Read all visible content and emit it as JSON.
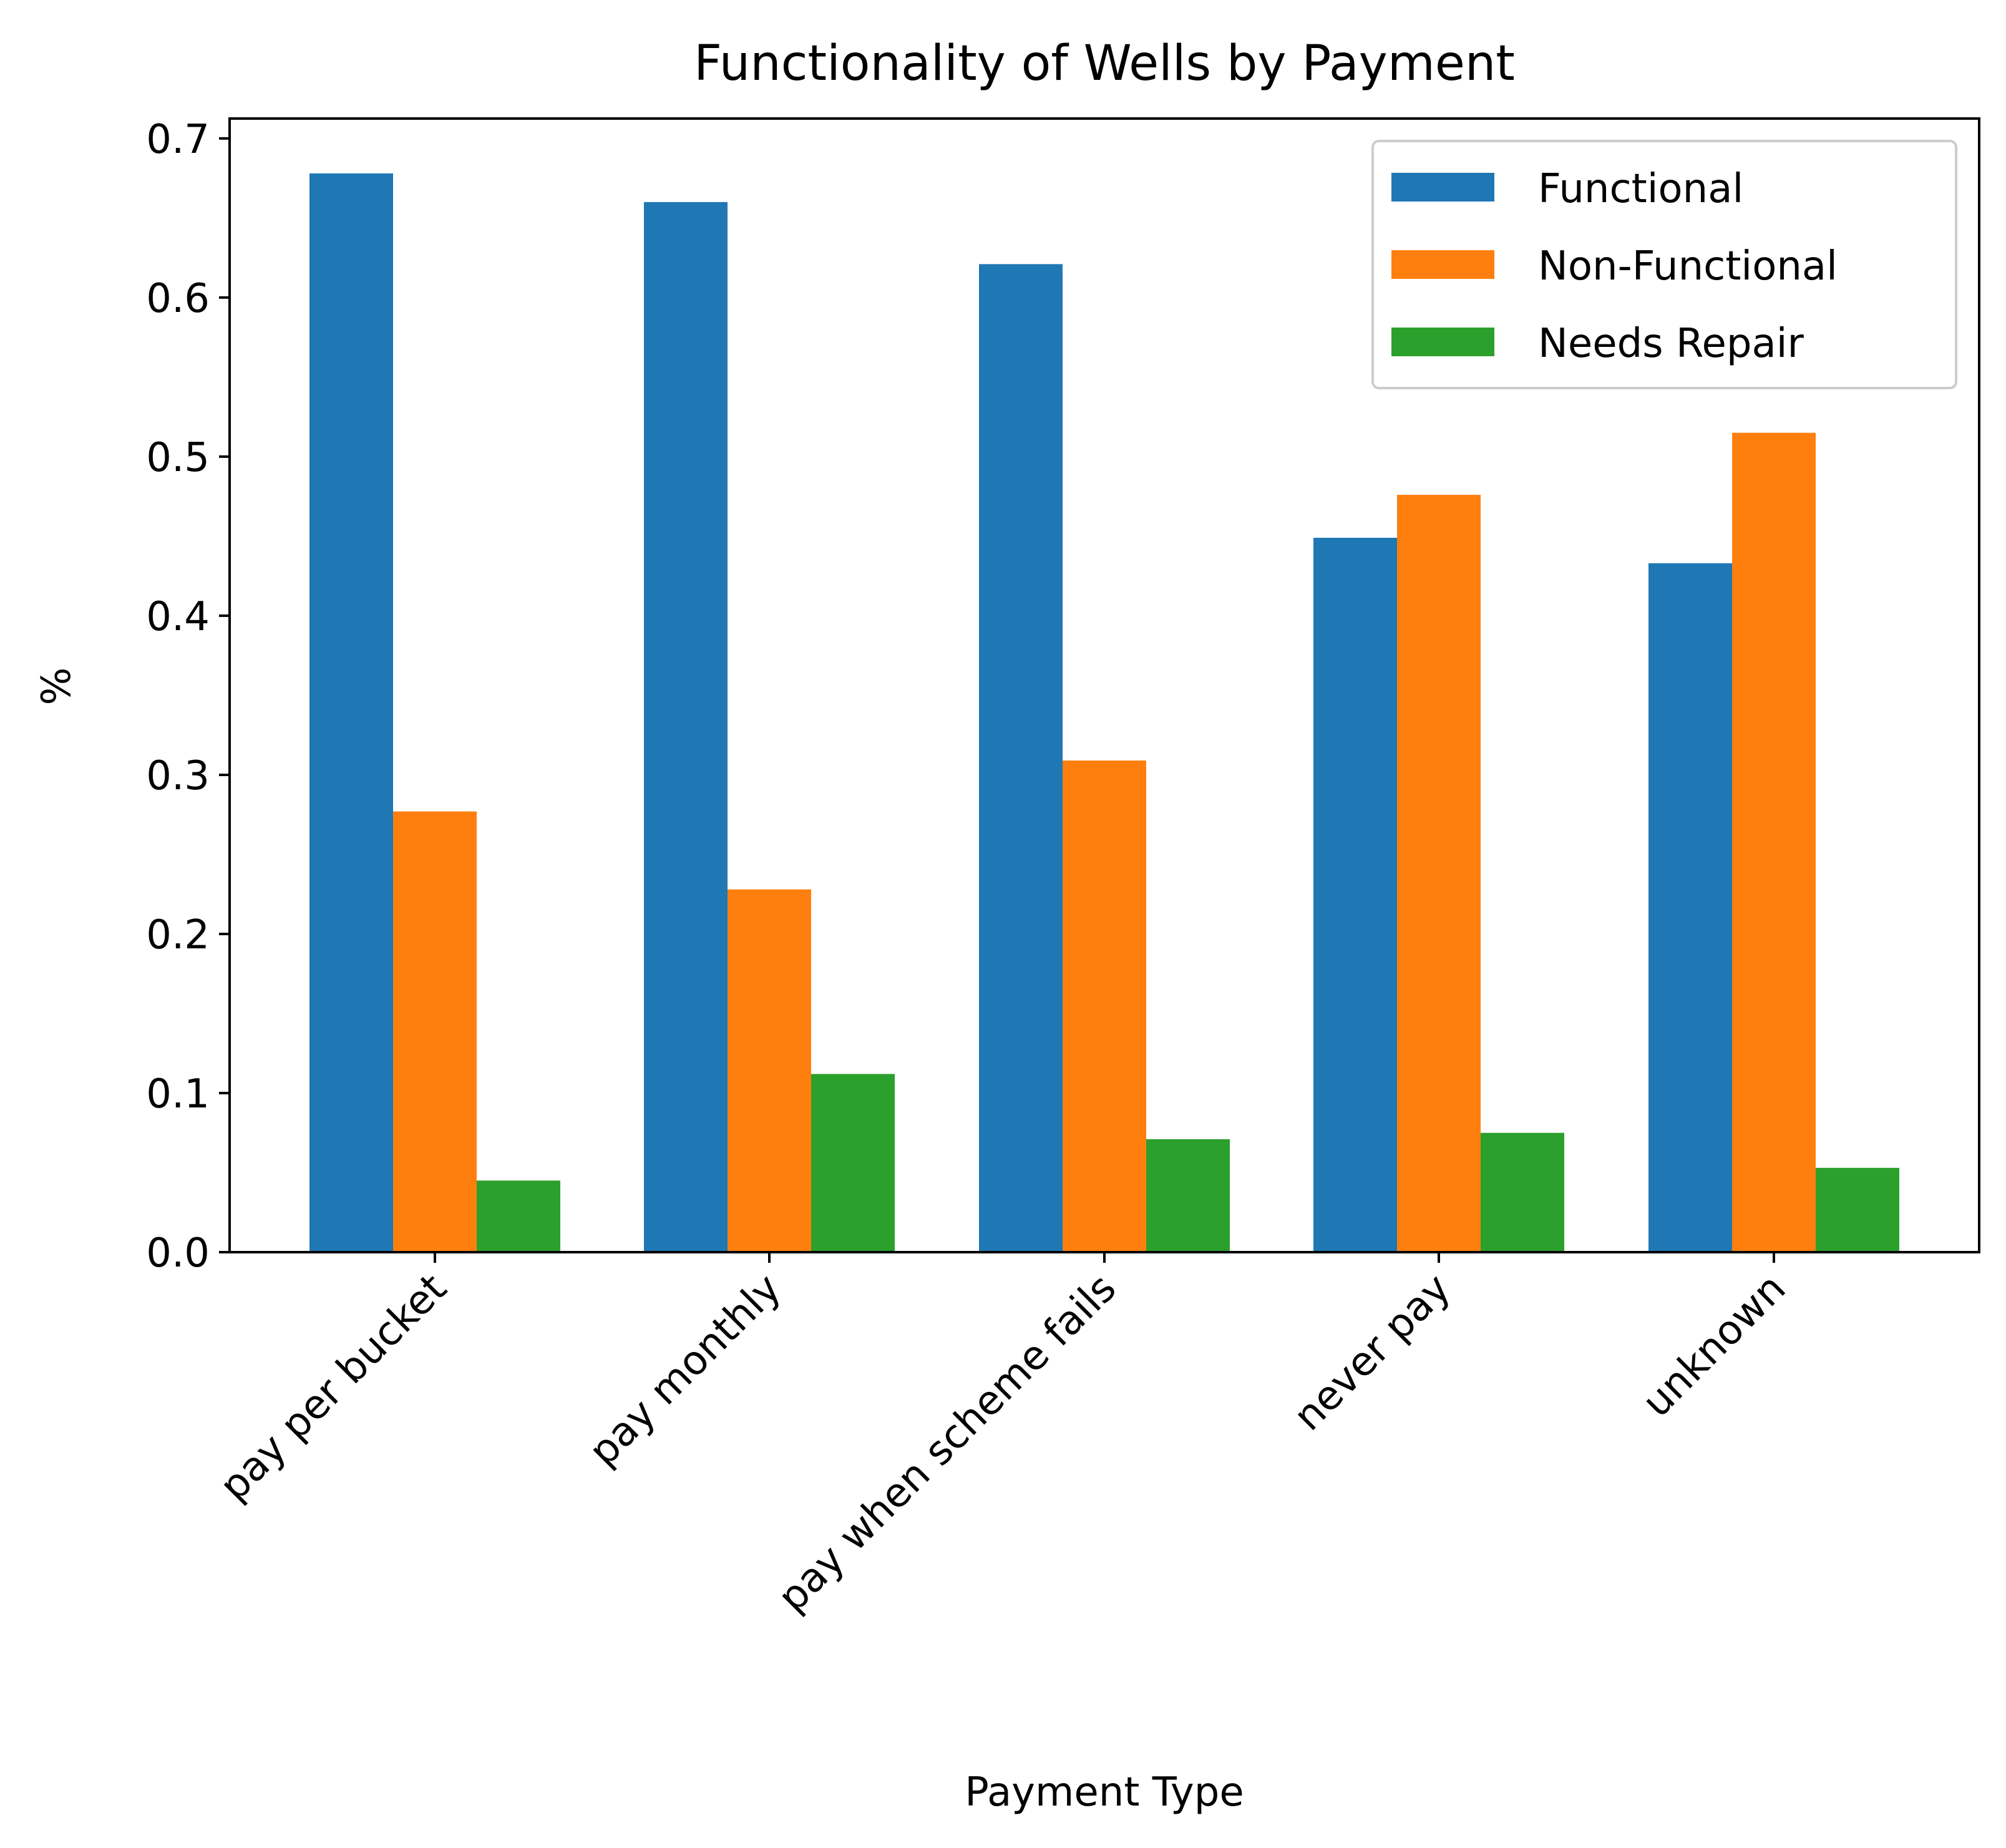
{
  "chart_data": {
    "type": "bar",
    "title": "Functionality of Wells by Payment",
    "xlabel": "Payment Type",
    "ylabel": "%",
    "ylim": [
      0,
      0.7125
    ],
    "yticks": [
      "0.0",
      "0.1",
      "0.2",
      "0.3",
      "0.4",
      "0.5",
      "0.6",
      "0.7"
    ],
    "categories": [
      "pay per bucket",
      "pay monthly",
      "pay when scheme fails",
      "never pay",
      "unknown"
    ],
    "series": [
      {
        "name": "Functional",
        "color": "#1f77b4",
        "values": [
          0.678,
          0.66,
          0.621,
          0.449,
          0.433
        ]
      },
      {
        "name": "Non-Functional",
        "color": "#ff7f0e",
        "values": [
          0.277,
          0.228,
          0.309,
          0.476,
          0.515
        ]
      },
      {
        "name": "Needs Repair",
        "color": "#2ca02c",
        "values": [
          0.045,
          0.112,
          0.071,
          0.075,
          0.053
        ]
      }
    ],
    "legend_position": "top-right",
    "grid": false
  }
}
